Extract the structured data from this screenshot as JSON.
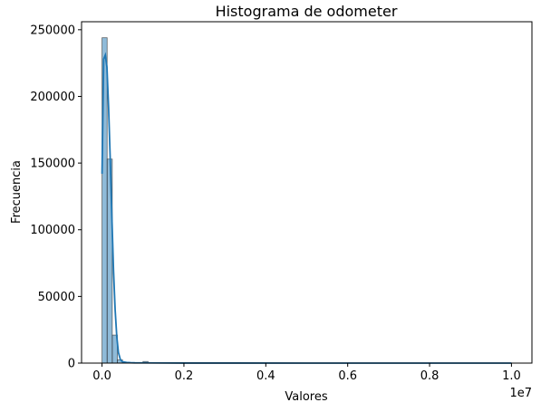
{
  "chart_data": {
    "type": "bar",
    "title": "Histograma de odometer",
    "xlabel": "Valores",
    "ylabel": "Frecuencia",
    "x_offset_text": "1e7",
    "x_scale_multiplier": 10000000,
    "xlim": [
      -0.05,
      1.05
    ],
    "ylim": [
      0,
      256000
    ],
    "x_ticks": [
      0.0,
      0.2,
      0.4,
      0.6,
      0.8,
      1.0
    ],
    "x_tick_labels": [
      "0.0",
      "0.2",
      "0.4",
      "0.6",
      "0.8",
      "1.0"
    ],
    "y_ticks": [
      0,
      50000,
      100000,
      150000,
      200000,
      250000
    ],
    "y_tick_labels": [
      "0",
      "50000",
      "100000",
      "150000",
      "200000",
      "250000"
    ],
    "bar_color": "#1f77b4",
    "bins": [
      {
        "x0": 0.0,
        "x1": 0.0125,
        "count": 244000
      },
      {
        "x0": 0.0125,
        "x1": 0.025,
        "count": 153000
      },
      {
        "x0": 0.025,
        "x1": 0.0375,
        "count": 21000
      },
      {
        "x0": 0.0375,
        "x1": 0.05,
        "count": 2500
      },
      {
        "x0": 0.05,
        "x1": 0.0625,
        "count": 700
      },
      {
        "x0": 0.0625,
        "x1": 0.075,
        "count": 250
      },
      {
        "x0": 0.0875,
        "x1": 0.1,
        "count": 100
      },
      {
        "x0": 0.1,
        "x1": 0.1125,
        "count": 1200
      }
    ],
    "kde": {
      "color": "#1f77b4",
      "x": [
        0.0,
        0.004,
        0.008,
        0.012,
        0.016,
        0.02,
        0.024,
        0.028,
        0.032,
        0.036,
        0.04,
        0.045,
        0.05,
        0.06,
        0.07,
        0.08,
        0.1,
        0.15,
        0.2,
        0.3,
        0.5,
        0.7,
        1.0
      ],
      "y": [
        142000,
        228000,
        231000,
        222000,
        192000,
        153000,
        110000,
        70000,
        40000,
        20000,
        8000,
        2500,
        1000,
        500,
        300,
        200,
        150,
        100,
        50,
        30,
        20,
        20,
        10
      ]
    }
  }
}
